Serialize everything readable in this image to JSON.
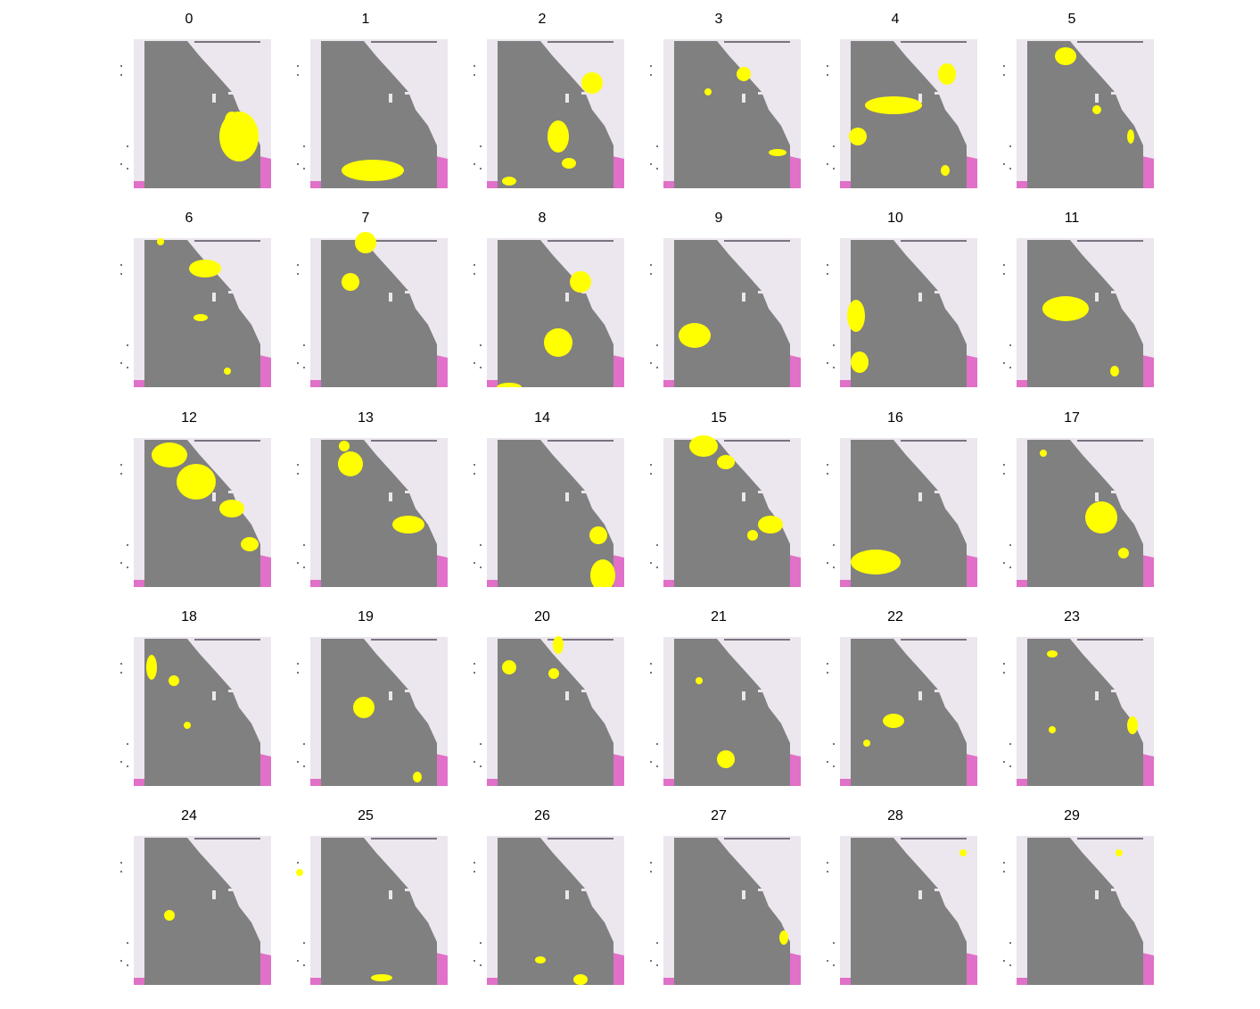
{
  "figure": {
    "colors": {
      "tissue": "#808080",
      "highlight": "#ffff00",
      "background_slide": "#ece6ee",
      "stain_edge": "#e070c8",
      "label_bar": "#7a7380"
    },
    "panels": [
      {
        "label": "0"
      },
      {
        "label": "1"
      },
      {
        "label": "2"
      },
      {
        "label": "3"
      },
      {
        "label": "4"
      },
      {
        "label": "5"
      },
      {
        "label": "6"
      },
      {
        "label": "7"
      },
      {
        "label": "8"
      },
      {
        "label": "9"
      },
      {
        "label": "10"
      },
      {
        "label": "11"
      },
      {
        "label": "12"
      },
      {
        "label": "13"
      },
      {
        "label": "14"
      },
      {
        "label": "15"
      },
      {
        "label": "16"
      },
      {
        "label": "17"
      },
      {
        "label": "18"
      },
      {
        "label": "19"
      },
      {
        "label": "20"
      },
      {
        "label": "21"
      },
      {
        "label": "22"
      },
      {
        "label": "23"
      },
      {
        "label": "24"
      },
      {
        "label": "25"
      },
      {
        "label": "26"
      },
      {
        "label": "27"
      },
      {
        "label": "28"
      },
      {
        "label": "29"
      }
    ]
  }
}
